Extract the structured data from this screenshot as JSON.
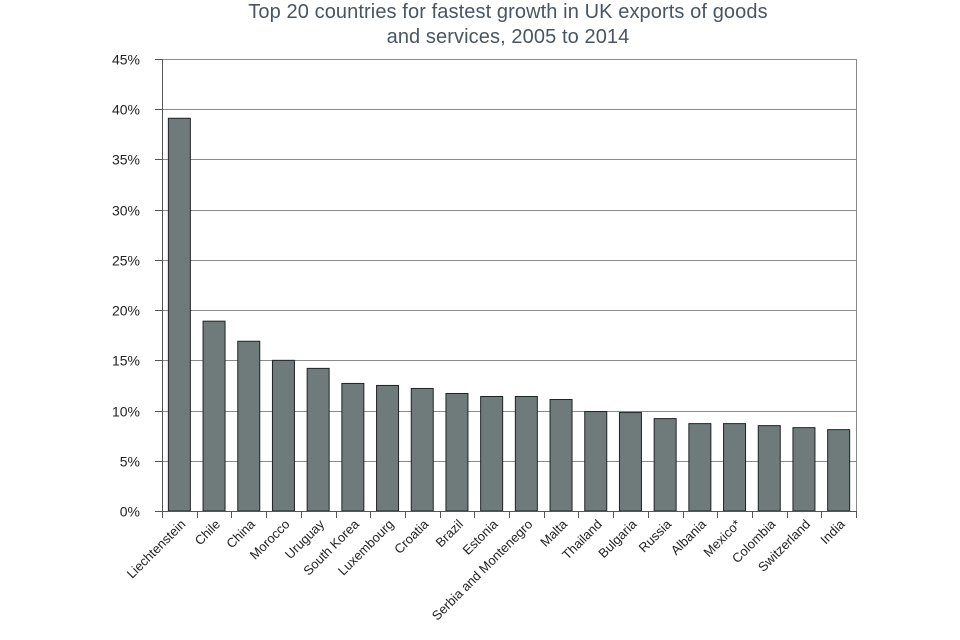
{
  "chart_data": {
    "type": "bar",
    "title_lines": [
      "Top 20 countries for fastest growth in UK exports of goods",
      "and services, 2005 to 2014"
    ],
    "xlabel": "",
    "ylabel": "",
    "ylim": [
      0,
      45
    ],
    "yticks": [
      0,
      5,
      10,
      15,
      20,
      25,
      30,
      35,
      40,
      45
    ],
    "ytick_suffix": "%",
    "grid": true,
    "legend": "none",
    "colors": {
      "bar_fill": "#6e7b7a",
      "bar_stroke": "#1e2424",
      "grid": "#8a8a8a",
      "axis": "#555555",
      "title": "#4a5563"
    },
    "categories": [
      "Liechtenstein",
      "Chile",
      "China",
      "Morocco",
      "Uruguay",
      "South Korea",
      "Luxembourg",
      "Croatia",
      "Brazil",
      "Estonia",
      "Serbia and Montenegro",
      "Malta",
      "Thailand",
      "Bulgaria",
      "Russia",
      "Albania",
      "Mexico*",
      "Colombia",
      "Switzerland",
      "India"
    ],
    "values": [
      39.1,
      18.9,
      16.9,
      15.0,
      14.2,
      12.7,
      12.5,
      12.2,
      11.7,
      11.4,
      11.4,
      11.1,
      9.9,
      9.8,
      9.2,
      8.7,
      8.7,
      8.5,
      8.3,
      8.1
    ]
  }
}
